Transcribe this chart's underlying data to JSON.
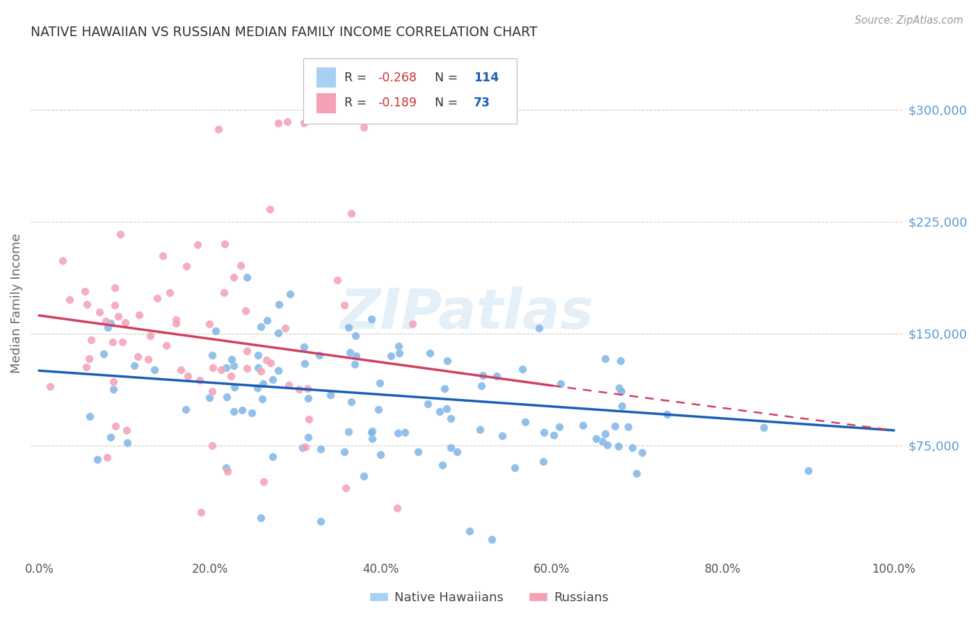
{
  "title": "NATIVE HAWAIIAN VS RUSSIAN MEDIAN FAMILY INCOME CORRELATION CHART",
  "source": "Source: ZipAtlas.com",
  "ylabel": "Median Family Income",
  "yticks": [
    75000,
    150000,
    225000,
    300000
  ],
  "ytick_labels": [
    "$75,000",
    "$150,000",
    "$225,000",
    "$300,000"
  ],
  "xlim": [
    0.0,
    1.0
  ],
  "ylim": [
    0,
    340000
  ],
  "background_color": "#ffffff",
  "grid_color": "#cccccc",
  "watermark": "ZIPatlas",
  "series": [
    {
      "name": "Native Hawaiians",
      "color": "#7eb5e8",
      "edge_color": "#6aa3d8",
      "R": -0.268,
      "N": 114,
      "legend_color": "#a8d0f5"
    },
    {
      "name": "Russians",
      "color": "#f4a0b5",
      "edge_color": "#e890a5",
      "R": -0.189,
      "N": 73,
      "legend_color": "#f4a0b5"
    }
  ],
  "R_values": [
    "-0.268",
    "-0.189"
  ],
  "N_values": [
    "114",
    "73"
  ],
  "title_color": "#333333",
  "source_color": "#999999",
  "axis_label_color": "#666666",
  "ytick_color": "#5b9bd5",
  "xtick_color": "#555555",
  "trend_blue": "#1a5fb4",
  "trend_pink": "#d04060",
  "legend_border": "#bbbbbb",
  "R_text_color": "#cc3333",
  "N_text_color": "#1a5fb4"
}
